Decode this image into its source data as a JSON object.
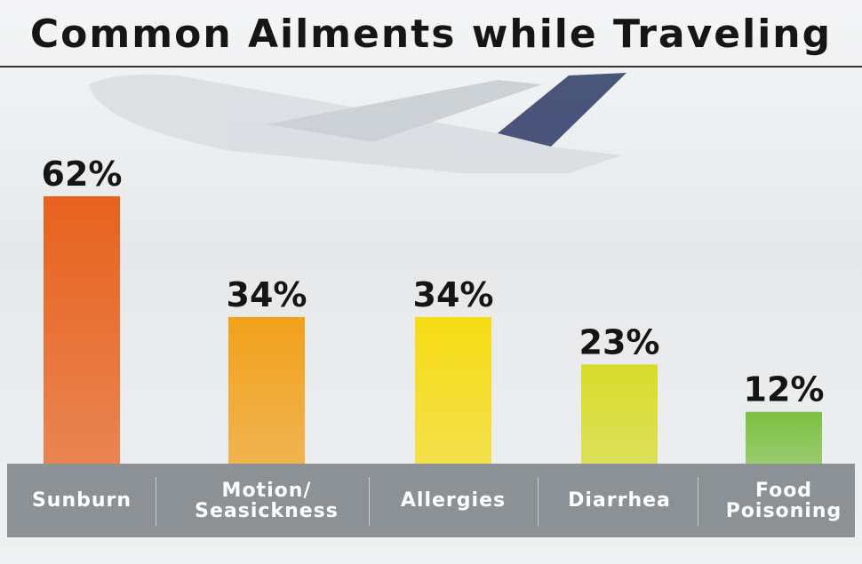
{
  "chart_data": {
    "type": "bar",
    "title": "Common Ailments while Traveling",
    "categories": [
      "Sunburn",
      "Motion/ Seasickness",
      "Allergies",
      "Diarrhea",
      "Food Poisoning"
    ],
    "values": [
      62,
      34,
      34,
      23,
      12
    ],
    "value_labels": [
      "62%",
      "34%",
      "34%",
      "23%",
      "12%"
    ],
    "colors": [
      "#e8621e",
      "#f2a11a",
      "#f6dc14",
      "#d8dc2a",
      "#7cc043"
    ]
  }
}
